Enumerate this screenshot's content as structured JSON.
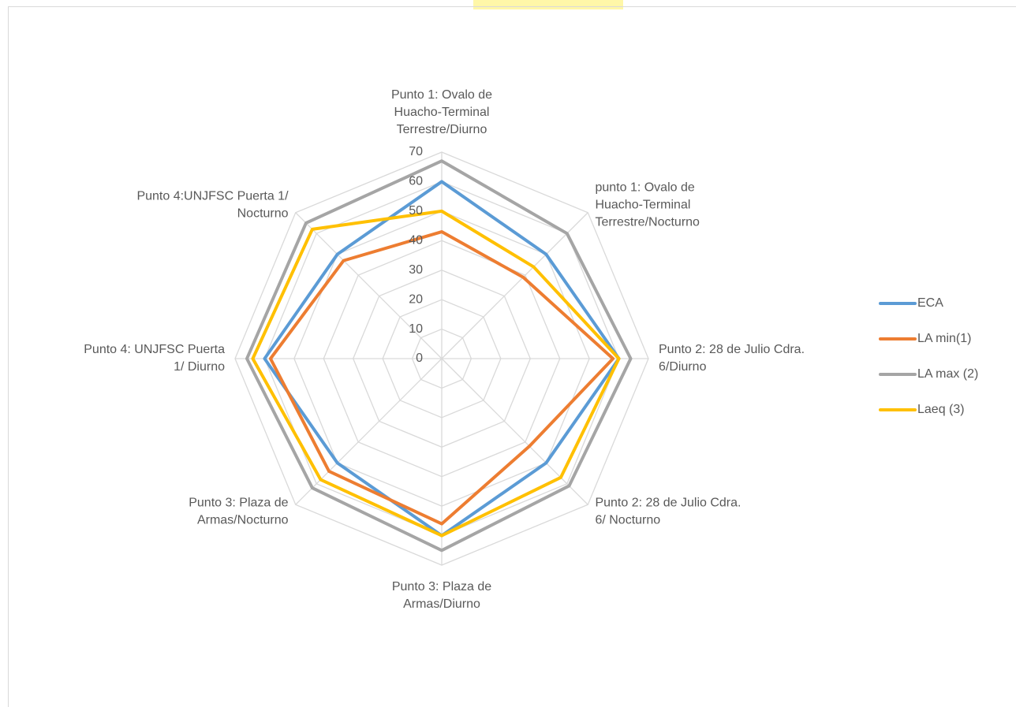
{
  "chart_data": {
    "type": "radar",
    "categories": [
      "Punto 1: Ovalo de Huacho-Terminal Terrestre/Diurno",
      "punto 1: Ovalo de Huacho-Terminal Terrestre/Nocturno",
      "Punto 2: 28 de Julio Cdra. 6/Diurno",
      "Punto 2: 28 de Julio Cdra. 6/ Nocturno",
      "Punto 3: Plaza de Armas/Diurno",
      "Punto 3: Plaza de Armas/Nocturno",
      "Punto 4: UNJFSC Puerta 1/ Diurno",
      "Punto 4:UNJFSC Puerta 1/ Nocturno"
    ],
    "series": [
      {
        "name": "ECA",
        "color": "#5b9bd5",
        "values": [
          60,
          50,
          60,
          50,
          60,
          50,
          60,
          50
        ]
      },
      {
        "name": "LA min(1)",
        "color": "#ed7d31",
        "values": [
          43,
          39,
          58,
          42,
          56,
          54,
          58,
          47
        ]
      },
      {
        "name": "LA max (2)",
        "color": "#a5a5a5",
        "values": [
          67,
          60,
          64,
          61,
          65,
          62,
          66,
          65
        ]
      },
      {
        "name": "Laeq (3)",
        "color": "#ffc000",
        "values": [
          50,
          44,
          60,
          57,
          60,
          58,
          64,
          62
        ]
      }
    ],
    "ylim": [
      0,
      70
    ],
    "yticks": [
      0,
      10,
      20,
      30,
      40,
      50,
      60,
      70
    ],
    "grid": true,
    "legend": "right"
  }
}
